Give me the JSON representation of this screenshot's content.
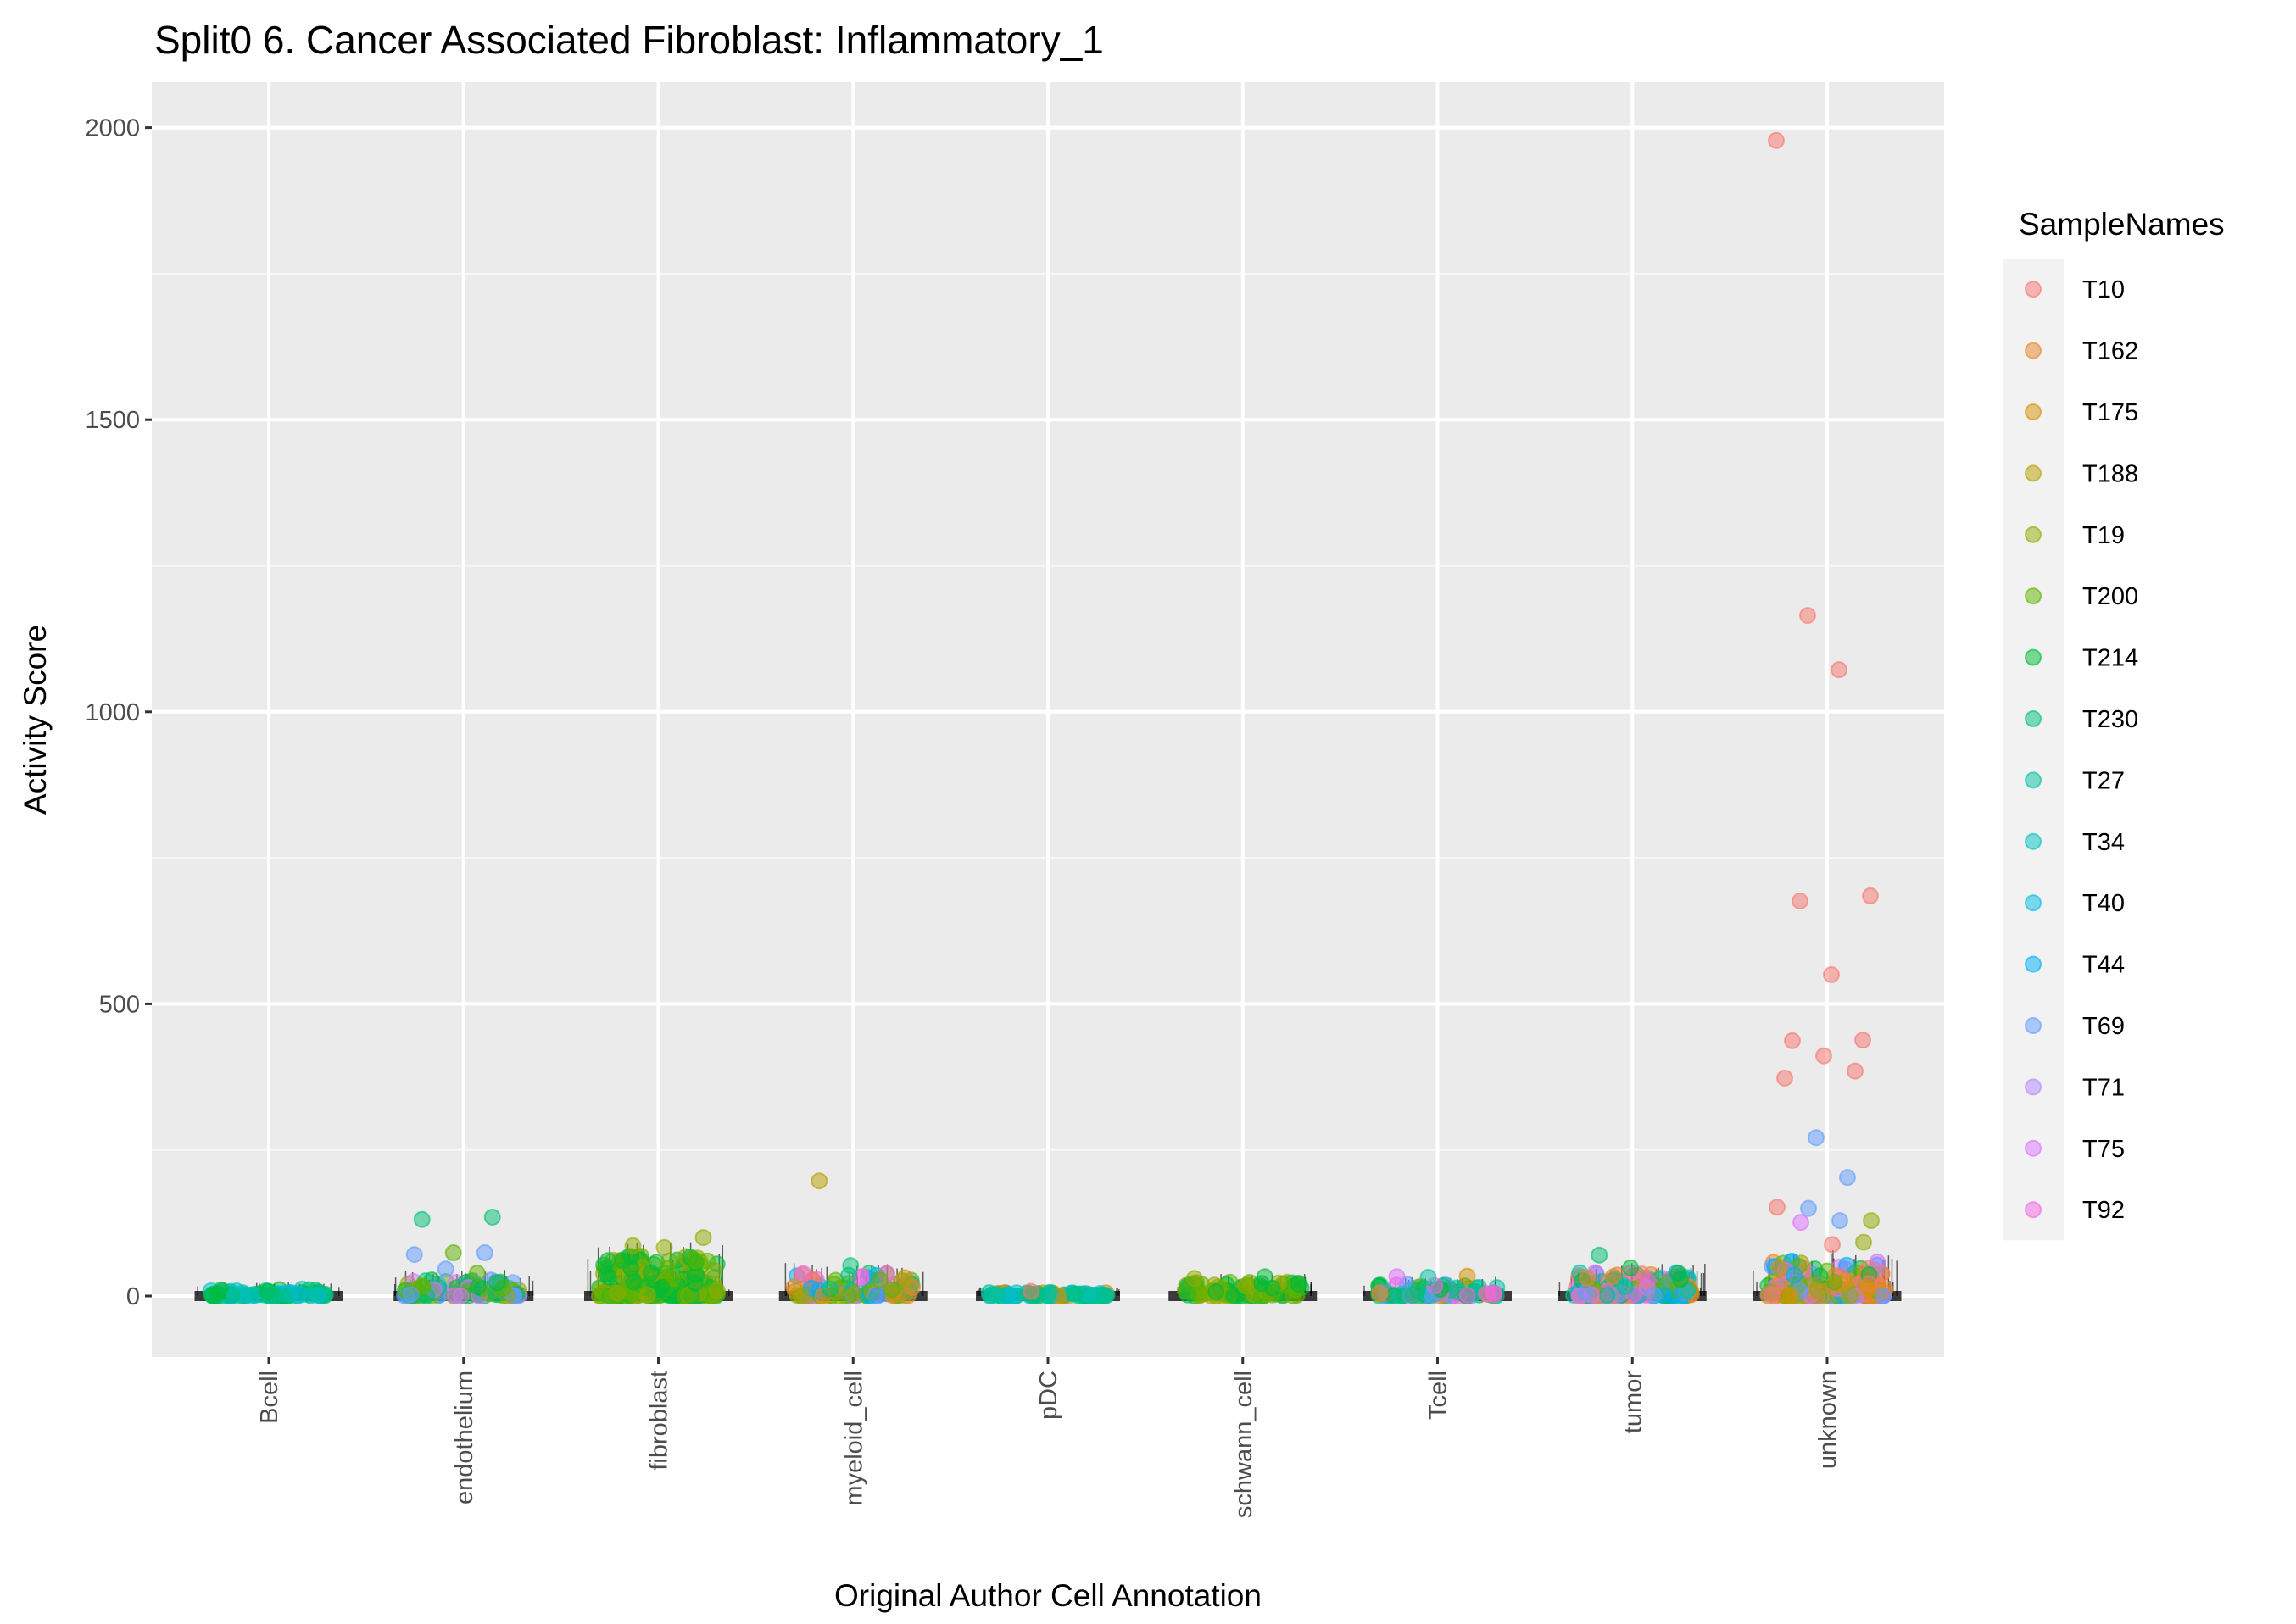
{
  "chart_data": {
    "type": "scatter",
    "subtype": "jitter-with-rug",
    "title": "Split0 6. Cancer Associated Fibroblast: Inflammatory_1",
    "xlabel": "Original Author Cell Annotation",
    "ylabel": "Activity Score",
    "ylim": [
      -95,
      2020
    ],
    "yticks": [
      0,
      500,
      1000,
      1500,
      2000
    ],
    "ytick_labels": [
      "0",
      "500",
      "1000",
      "1500",
      "2000"
    ],
    "grid": true,
    "categories": [
      "Bcell",
      "endothelium",
      "fibroblast",
      "myeloid_cell",
      "pDC",
      "schwann_cell",
      "Tcell",
      "tumor",
      "unknown"
    ],
    "legend": {
      "title": "SampleNames",
      "position": "right",
      "entries": [
        {
          "name": "T10",
          "color": "#F8766D"
        },
        {
          "name": "T162",
          "color": "#E88526"
        },
        {
          "name": "T175",
          "color": "#D39200"
        },
        {
          "name": "T188",
          "color": "#B79F00"
        },
        {
          "name": "T19",
          "color": "#93AA00"
        },
        {
          "name": "T200",
          "color": "#5EB300"
        },
        {
          "name": "T214",
          "color": "#00BA38"
        },
        {
          "name": "T230",
          "color": "#00BF74"
        },
        {
          "name": "T27",
          "color": "#00C19F"
        },
        {
          "name": "T34",
          "color": "#00BFC4"
        },
        {
          "name": "T40",
          "color": "#00B9E3"
        },
        {
          "name": "T44",
          "color": "#00ADFA"
        },
        {
          "name": "T69",
          "color": "#619CFF"
        },
        {
          "name": "T71",
          "color": "#AE87FF"
        },
        {
          "name": "T75",
          "color": "#DB72FB"
        },
        {
          "name": "T92",
          "color": "#F564E3"
        }
      ]
    },
    "notable_points": [
      {
        "category": "unknown",
        "sample": "T10",
        "value": 1978
      },
      {
        "category": "unknown",
        "sample": "T10",
        "value": 1165
      },
      {
        "category": "unknown",
        "sample": "T10",
        "value": 1072
      },
      {
        "category": "unknown",
        "sample": "T10",
        "value": 685
      },
      {
        "category": "unknown",
        "sample": "T10",
        "value": 676
      },
      {
        "category": "unknown",
        "sample": "T10",
        "value": 550
      },
      {
        "category": "unknown",
        "sample": "T10",
        "value": 438
      },
      {
        "category": "unknown",
        "sample": "T10",
        "value": 437
      },
      {
        "category": "unknown",
        "sample": "T10",
        "value": 411
      },
      {
        "category": "unknown",
        "sample": "T10",
        "value": 385
      },
      {
        "category": "unknown",
        "sample": "T10",
        "value": 373
      },
      {
        "category": "unknown",
        "sample": "T69",
        "value": 271
      },
      {
        "category": "unknown",
        "sample": "T69",
        "value": 203
      },
      {
        "category": "unknown",
        "sample": "T10",
        "value": 152
      },
      {
        "category": "unknown",
        "sample": "T69",
        "value": 150
      },
      {
        "category": "unknown",
        "sample": "T69",
        "value": 129
      },
      {
        "category": "unknown",
        "sample": "T19",
        "value": 129
      },
      {
        "category": "unknown",
        "sample": "T75",
        "value": 126
      },
      {
        "category": "unknown",
        "sample": "T10",
        "value": 88
      },
      {
        "category": "unknown",
        "sample": "T19",
        "value": 92
      },
      {
        "category": "myeloid_cell",
        "sample": "T188",
        "value": 197
      },
      {
        "category": "myeloid_cell",
        "sample": "T230",
        "value": 52
      },
      {
        "category": "endothelium",
        "sample": "T230",
        "value": 135
      },
      {
        "category": "endothelium",
        "sample": "T230",
        "value": 131
      },
      {
        "category": "endothelium",
        "sample": "T200",
        "value": 74
      },
      {
        "category": "endothelium",
        "sample": "T69",
        "value": 74
      },
      {
        "category": "endothelium",
        "sample": "T69",
        "value": 71
      },
      {
        "category": "endothelium",
        "sample": "T69",
        "value": 46
      },
      {
        "category": "endothelium",
        "sample": "T200",
        "value": 39
      },
      {
        "category": "fibroblast",
        "sample": "T19",
        "value": 100
      },
      {
        "category": "fibroblast",
        "sample": "T19",
        "value": 86
      },
      {
        "category": "fibroblast",
        "sample": "T19",
        "value": 83
      },
      {
        "category": "fibroblast",
        "sample": "T200",
        "value": 60
      },
      {
        "category": "tumor",
        "sample": "T230",
        "value": 70
      },
      {
        "category": "tumor",
        "sample": "T214",
        "value": 48
      },
      {
        "category": "Tcell",
        "sample": "T175",
        "value": 34
      },
      {
        "category": "Tcell",
        "sample": "T75",
        "value": 33
      },
      {
        "category": "Tcell",
        "sample": "T27",
        "value": 32
      },
      {
        "category": "schwann_cell",
        "sample": "T214",
        "value": 33
      },
      {
        "category": "schwann_cell",
        "sample": "T19",
        "value": 30
      },
      {
        "category": "pDC",
        "sample": "T10",
        "value": 8
      }
    ],
    "bulk_clusters": [
      {
        "category": "Bcell",
        "samples": [
          "T34",
          "T27",
          "T40",
          "T230",
          "T214"
        ],
        "max_value": 12
      },
      {
        "category": "endothelium",
        "samples": [
          "T200",
          "T214",
          "T19",
          "T69",
          "T230",
          "T75"
        ],
        "max_value": 30
      },
      {
        "category": "fibroblast",
        "samples": [
          "T19",
          "T200",
          "T214"
        ],
        "max_value": 70
      },
      {
        "category": "myeloid_cell",
        "samples": [
          "T200",
          "T19",
          "T162",
          "T230",
          "T44",
          "T92",
          "T188"
        ],
        "max_value": 40
      },
      {
        "category": "pDC",
        "samples": [
          "T175",
          "T34",
          "T40",
          "T27",
          "T230"
        ],
        "max_value": 6
      },
      {
        "category": "schwann_cell",
        "samples": [
          "T200",
          "T19",
          "T214"
        ],
        "max_value": 25
      },
      {
        "category": "Tcell",
        "samples": [
          "T34",
          "T27",
          "T214",
          "T230",
          "T69",
          "T92",
          "T188"
        ],
        "max_value": 20
      },
      {
        "category": "tumor",
        "samples": [
          "T10",
          "T162",
          "T214",
          "T230",
          "T27",
          "T44",
          "T69",
          "T75",
          "T92",
          "T200"
        ],
        "max_value": 40
      },
      {
        "category": "unknown",
        "samples": [
          "T200",
          "T214",
          "T19",
          "T162",
          "T69",
          "T75",
          "T10",
          "T44",
          "T175"
        ],
        "max_value": 60
      }
    ]
  }
}
